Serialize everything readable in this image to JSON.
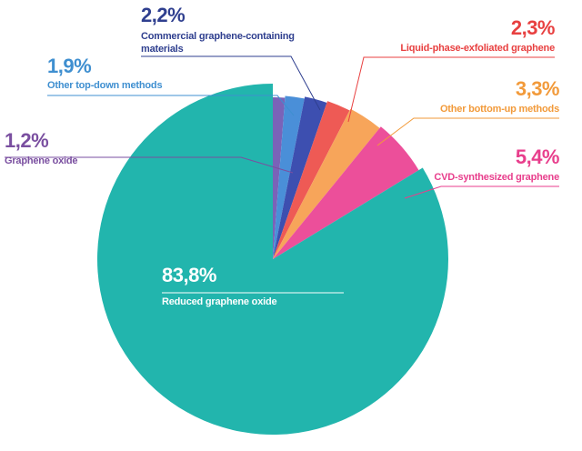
{
  "chart_data": {
    "type": "pie",
    "title": "",
    "start_angle": "12 o'clock",
    "direction": "clockwise",
    "slices": [
      {
        "label": "Graphene oxide",
        "value": 1.2,
        "value_label": "1,2%",
        "color": "#7a63b8",
        "text_color": "#7a4fa0"
      },
      {
        "label": "Other top-down methods",
        "value": 1.9,
        "value_label": "1,9%",
        "color": "#4a8fd8",
        "text_color": "#3f8fd0"
      },
      {
        "label": "Commercial graphene-containing materials",
        "value": 2.2,
        "value_label": "2,2%",
        "color": "#3d4fb0",
        "text_color": "#2f3f8f"
      },
      {
        "label": "Liquid-phase-exfoliated graphene",
        "value": 2.3,
        "value_label": "2,3%",
        "color": "#ee5a55",
        "text_color": "#e84040"
      },
      {
        "label": "Other bottom-up methods",
        "value": 3.3,
        "value_label": "3,3%",
        "color": "#f7a55a",
        "text_color": "#f29a3a"
      },
      {
        "label": "CVD-synthesized graphene",
        "value": 5.4,
        "value_label": "5,4%",
        "color": "#ec4f9a",
        "text_color": "#e83e8c"
      },
      {
        "label": "Reduced graphene oxide",
        "value": 83.8,
        "value_label": "83,8%",
        "color": "#22b5ad",
        "text_color": "#ffffff"
      }
    ]
  }
}
